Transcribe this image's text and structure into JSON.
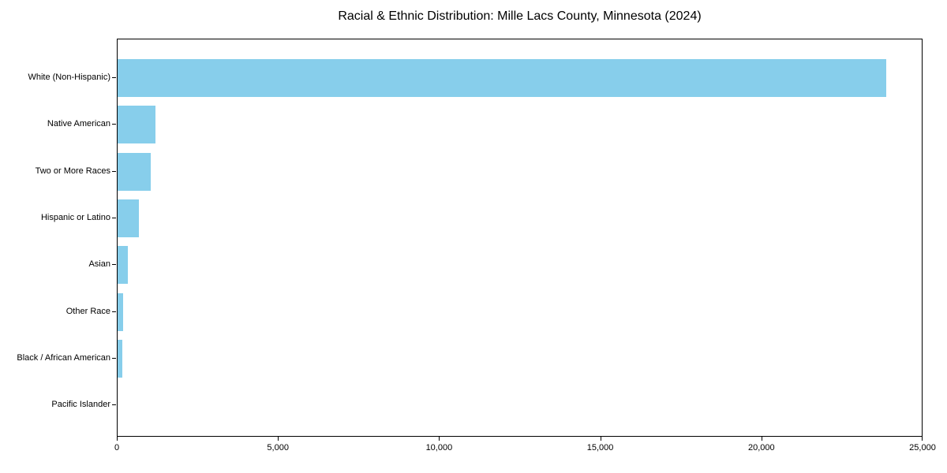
{
  "title": "Racial & Ethnic Distribution: Mille Lacs County, Minnesota (2024)",
  "chart_data": {
    "type": "bar",
    "orientation": "horizontal",
    "title": "Racial & Ethnic Distribution: Mille Lacs County, Minnesota (2024)",
    "xlabel": "",
    "ylabel": "",
    "categories": [
      "White (Non-Hispanic)",
      "Native American",
      "Two or More Races",
      "Hispanic or Latino",
      "Asian",
      "Other Race",
      "Black / African American",
      "Pacific Islander"
    ],
    "values": [
      23850,
      1170,
      1030,
      660,
      320,
      170,
      150,
      0
    ],
    "xlim": [
      0,
      25000
    ],
    "xticks": [
      0,
      5000,
      10000,
      15000,
      20000,
      25000
    ],
    "xtick_labels": [
      "0",
      "5,000",
      "10,000",
      "15,000",
      "20,000",
      "25,000"
    ],
    "bar_color": "#87CEEB",
    "grid": false,
    "legend_position": "none"
  }
}
